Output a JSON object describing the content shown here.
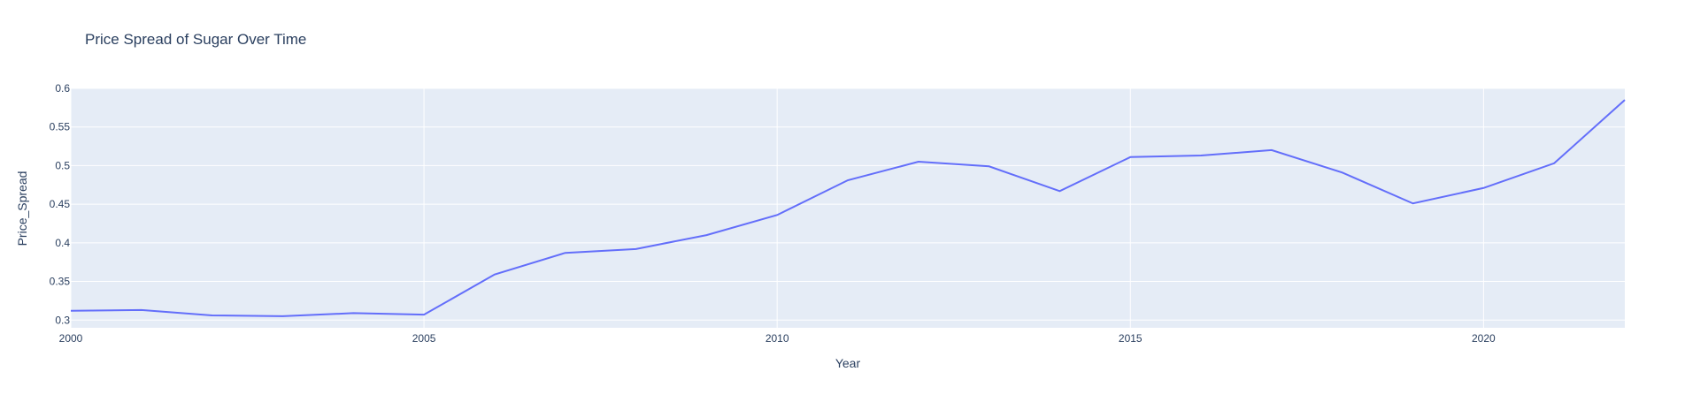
{
  "chart_data": {
    "type": "line",
    "title": "Price Spread of Sugar Over Time",
    "xlabel": "Year",
    "ylabel": "Price_Spread",
    "xlim": [
      2000,
      2022
    ],
    "ylim": [
      0.29,
      0.6
    ],
    "x_ticks": [
      2000,
      2005,
      2010,
      2015,
      2020
    ],
    "y_ticks": [
      0.3,
      0.35,
      0.4,
      0.45,
      0.5,
      0.55,
      0.6
    ],
    "grid": true,
    "colors": {
      "line": "#636efa",
      "plot_bg": "#e5ecf6",
      "grid": "#ffffff",
      "text": "#2a3f5f"
    },
    "series": [
      {
        "x": [
          2000,
          2001,
          2002,
          2003,
          2004,
          2005,
          2006,
          2007,
          2008,
          2009,
          2010,
          2011,
          2012,
          2013,
          2014,
          2015,
          2016,
          2017,
          2018,
          2019,
          2020,
          2021,
          2022
        ],
        "values": [
          0.312,
          0.313,
          0.306,
          0.305,
          0.309,
          0.307,
          0.359,
          0.387,
          0.392,
          0.41,
          0.436,
          0.481,
          0.505,
          0.499,
          0.467,
          0.511,
          0.513,
          0.52,
          0.491,
          0.451,
          0.471,
          0.503,
          0.585
        ]
      }
    ]
  }
}
